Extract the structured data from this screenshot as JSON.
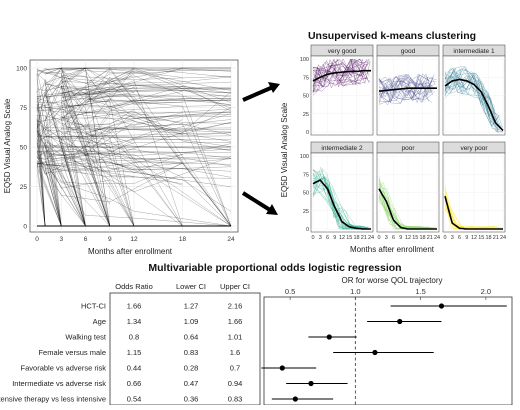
{
  "left_panel": {
    "ylabel": "EQ5D Visual Analog Scale",
    "xlabel": "Months after enrollment",
    "x_ticks": [
      "0",
      "3",
      "6",
      "9",
      "12",
      "18",
      "24"
    ],
    "y_ticks": [
      "0",
      "25",
      "50",
      "75",
      "100"
    ]
  },
  "cluster_panel": {
    "title": "Unsupervised k-means clustering",
    "ylabel": "EQ5D Visual Analog Scale",
    "xlabel": "Months after enrollment",
    "x_ticks": [
      "0",
      "3",
      "6",
      "9",
      "12",
      "15",
      "18",
      "21",
      "24"
    ],
    "y_ticks": [
      "0",
      "25",
      "50",
      "75",
      "100"
    ],
    "facets": [
      {
        "label": "very good",
        "color": "#440154"
      },
      {
        "label": "good",
        "color": "#414487"
      },
      {
        "label": "intermediate 1",
        "color": "#2a788e"
      },
      {
        "label": "intermediate 2",
        "color": "#22a884"
      },
      {
        "label": "poor",
        "color": "#7ad151"
      },
      {
        "label": "very poor",
        "color": "#fde725"
      }
    ]
  },
  "regression": {
    "title": "Multivariable proportional odds logistic regression",
    "axis_title": "OR for worse QOL trajectory",
    "headers": [
      "Odds Ratio",
      "Lower CI",
      "Upper CI"
    ],
    "x_ticks": [
      "0.5",
      "1.0",
      "1.5",
      "2.0"
    ],
    "rows": [
      {
        "label": "HCT-CI",
        "or": "1.66",
        "lower": "1.27",
        "upper": "2.16"
      },
      {
        "label": "Age",
        "or": "1.34",
        "lower": "1.09",
        "upper": "1.66"
      },
      {
        "label": "Walking test",
        "or": "0.8",
        "lower": "0.64",
        "upper": "1.01"
      },
      {
        "label": "Female versus male",
        "or": "1.15",
        "lower": "0.83",
        "upper": "1.6"
      },
      {
        "label": "Favorable vs adverse risk",
        "or": "0.44",
        "lower": "0.28",
        "upper": "0.7"
      },
      {
        "label": "Intermediate vs adverse risk",
        "or": "0.66",
        "lower": "0.47",
        "upper": "0.94"
      },
      {
        "label": "Intensive therapy vs less intensive",
        "or": "0.54",
        "lower": "0.36",
        "upper": "0.83"
      }
    ]
  },
  "chart_data": [
    {
      "type": "line",
      "title": "",
      "xlabel": "Months after enrollment",
      "ylabel": "EQ5D Visual Analog Scale",
      "xlim": [
        0,
        24
      ],
      "ylim": [
        0,
        100
      ],
      "grid": true
    },
    {
      "type": "line",
      "title": "Unsupervised k-means clustering",
      "xlabel": "Months after enrollment",
      "ylabel": "EQ5D Visual Analog Scale",
      "xlim": [
        0,
        24
      ],
      "ylim": [
        0,
        100
      ],
      "series": [
        {
          "name": "very good",
          "x": [
            0,
            3,
            6,
            9,
            12,
            15,
            18,
            21,
            24
          ],
          "values": [
            70,
            75,
            79,
            81,
            82,
            83,
            83,
            84,
            84
          ]
        },
        {
          "name": "good",
          "x": [
            0,
            3,
            6,
            9,
            12,
            15,
            18,
            21,
            24
          ],
          "values": [
            56,
            57,
            58,
            59,
            60,
            60,
            60,
            60,
            60
          ]
        },
        {
          "name": "intermediate 1",
          "x": [
            0,
            3,
            6,
            9,
            12,
            15,
            18,
            21,
            24
          ],
          "values": [
            63,
            70,
            72,
            70,
            65,
            55,
            35,
            12,
            2
          ]
        },
        {
          "name": "intermediate 2",
          "x": [
            0,
            3,
            6,
            9,
            12,
            15,
            18,
            21,
            24
          ],
          "values": [
            62,
            67,
            55,
            30,
            10,
            3,
            1,
            0,
            0
          ]
        },
        {
          "name": "poor",
          "x": [
            0,
            3,
            6,
            9,
            12,
            15,
            18,
            21,
            24
          ],
          "values": [
            55,
            38,
            12,
            2,
            0,
            0,
            0,
            0,
            0
          ]
        },
        {
          "name": "very poor",
          "x": [
            0,
            3,
            6,
            9,
            12,
            15,
            18,
            21,
            24
          ],
          "values": [
            45,
            8,
            1,
            0,
            0,
            0,
            0,
            0,
            0
          ]
        }
      ]
    },
    {
      "type": "scatter",
      "title": "Multivariable proportional odds logistic regression",
      "xlabel": "OR for worse QOL trajectory",
      "xlim": [
        0.3,
        2.2
      ],
      "reference_line": 1.0,
      "categories": [
        "HCT-CI",
        "Age",
        "Walking test",
        "Female versus male",
        "Favorable vs adverse risk",
        "Intermediate vs adverse risk",
        "Intensive therapy vs less intensive"
      ],
      "values": [
        1.66,
        1.34,
        0.8,
        1.15,
        0.44,
        0.66,
        0.54
      ],
      "lower": [
        1.27,
        1.09,
        0.64,
        0.83,
        0.28,
        0.47,
        0.36
      ],
      "upper": [
        2.16,
        1.66,
        1.01,
        1.6,
        0.7,
        0.94,
        0.83
      ]
    }
  ]
}
